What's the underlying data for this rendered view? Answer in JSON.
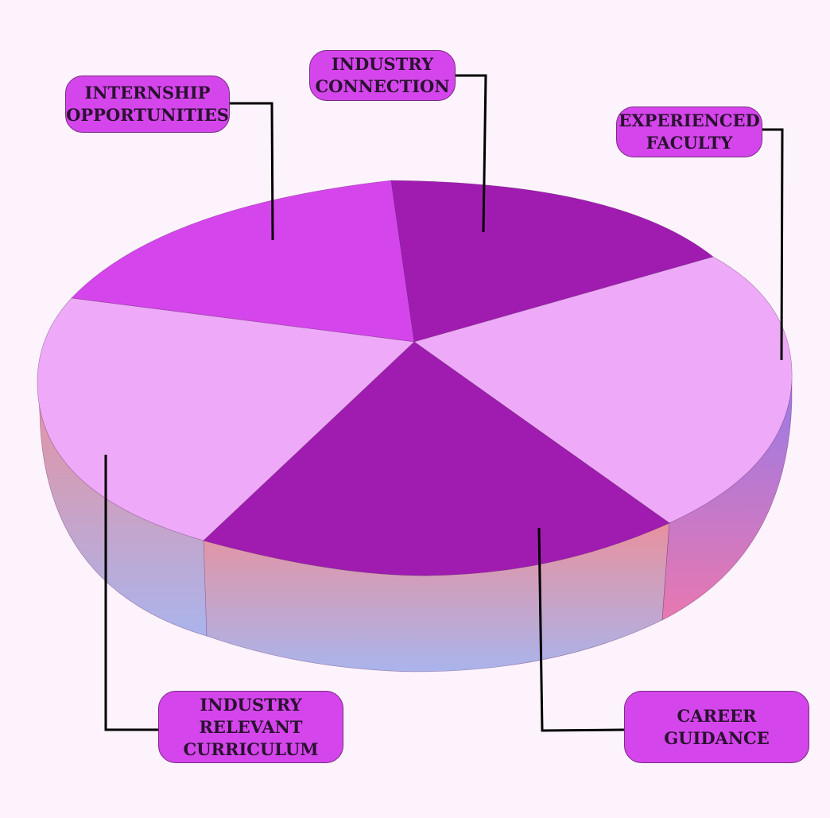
{
  "colors": {
    "background": "#fdf3fd",
    "label_fill": "#d545ec",
    "segment_dark": "#a01cb1",
    "segment_mid": "#d545ec",
    "segment_light": "#eeaaf8",
    "side_top": "#e8919e",
    "side_bottom": "#aab4ec",
    "side_right": "#9a7ae6"
  },
  "segments": [
    {
      "id": "industry-connection",
      "lines": [
        "INDUSTRY",
        "CONNECTION"
      ],
      "tone": "segment_dark"
    },
    {
      "id": "experienced-faculty",
      "lines": [
        "EXPERIENCED",
        "FACULTY"
      ],
      "tone": "segment_light"
    },
    {
      "id": "career-guidance",
      "lines": [
        "CAREER",
        "GUIDANCE"
      ],
      "tone": "segment_dark"
    },
    {
      "id": "industry-relevant-curriculum",
      "lines": [
        "INDUSTRY",
        "RELEVANT",
        "CURRICULUM"
      ],
      "tone": "segment_light"
    },
    {
      "id": "internship-opportunities",
      "lines": [
        "INTERNSHIP",
        "OPPORTUNITIES"
      ],
      "tone": "segment_mid"
    }
  ]
}
